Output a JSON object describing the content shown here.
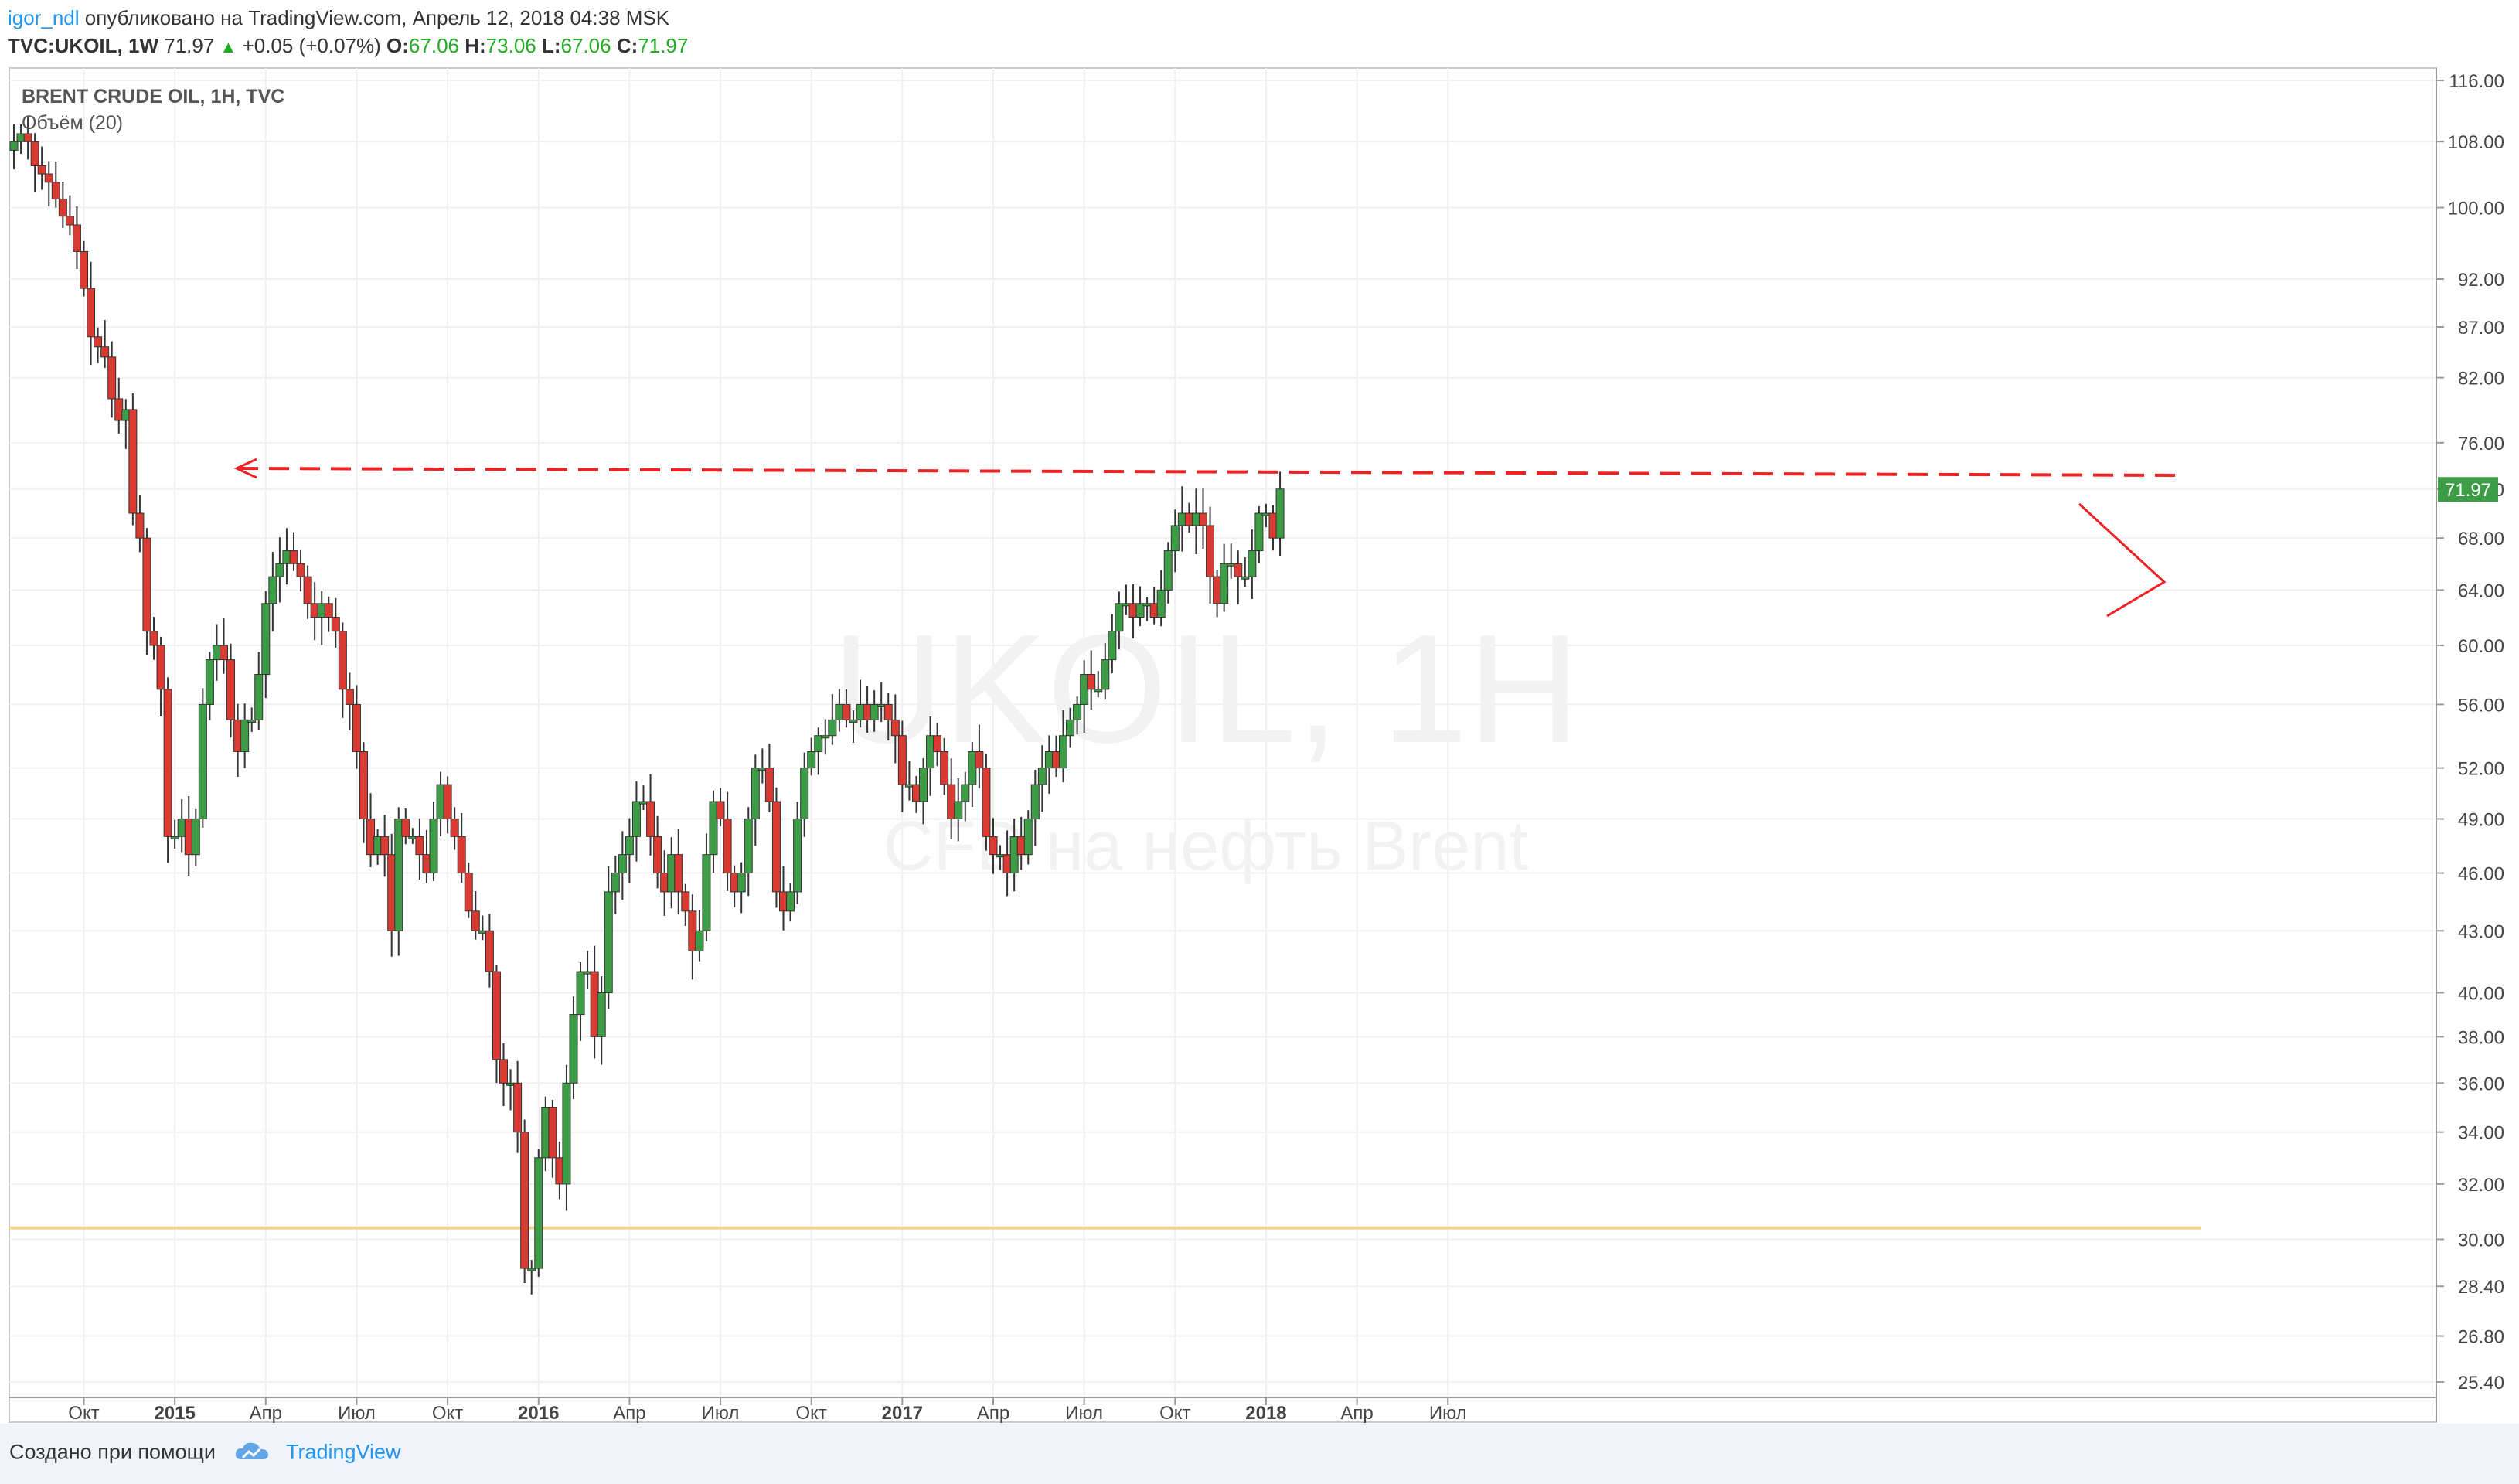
{
  "header": {
    "author": "igor_ndl",
    "published": "опубликовано на TradingView.com, Апрель 12, 2018 04:38 MSK",
    "symbol": "TVC:UKOIL, 1W",
    "last": "71.97",
    "change": "+0.05 (+0.07%)",
    "o_label": "O:",
    "o": "67.06",
    "h_label": "H:",
    "h": "73.06",
    "l_label": "L:",
    "l": "67.06",
    "c_label": "C:",
    "c": "71.97"
  },
  "legend": {
    "title": "BRENT CRUDE OIL, 1H, TVC",
    "volume": "Объём (20)"
  },
  "watermark": {
    "line1": "UKOIL, 1H",
    "line2": "CFD на нефть Brent"
  },
  "footer": {
    "created": "Создано при помощи",
    "brand": "TradingView"
  },
  "colors": {
    "up": "#3d9d46",
    "down": "#d93a31",
    "level": "#ee2222",
    "support": "#f5d48a",
    "price_tag": "#3d9d46",
    "author": "#2196f3"
  },
  "chart_data": {
    "type": "candlestick",
    "title": "BRENT CRUDE OIL, 1H, TVC",
    "scale": "log",
    "ylim": [
      25.4,
      116.0
    ],
    "y_ticks": [
      "116.00",
      "108.00",
      "100.00",
      "92.00",
      "87.00",
      "82.00",
      "76.00",
      "72.00",
      "68.00",
      "64.00",
      "60.00",
      "56.00",
      "52.00",
      "49.00",
      "46.00",
      "43.00",
      "40.00",
      "38.00",
      "36.00",
      "34.00",
      "32.00",
      "30.00",
      "28.40",
      "26.80",
      "25.40"
    ],
    "x_ticks": [
      {
        "label": "Окт",
        "week": 10,
        "bold": false
      },
      {
        "label": "2015",
        "week": 23,
        "bold": true
      },
      {
        "label": "Апр",
        "week": 36,
        "bold": false
      },
      {
        "label": "Июл",
        "week": 49,
        "bold": false
      },
      {
        "label": "Окт",
        "week": 62,
        "bold": false
      },
      {
        "label": "2016",
        "week": 75,
        "bold": true
      },
      {
        "label": "Апр",
        "week": 88,
        "bold": false
      },
      {
        "label": "Июл",
        "week": 101,
        "bold": false
      },
      {
        "label": "Окт",
        "week": 114,
        "bold": false
      },
      {
        "label": "2017",
        "week": 127,
        "bold": true
      },
      {
        "label": "Апр",
        "week": 140,
        "bold": false
      },
      {
        "label": "Июл",
        "week": 153,
        "bold": false
      },
      {
        "label": "Окт",
        "week": 166,
        "bold": false
      },
      {
        "label": "2018",
        "week": 179,
        "bold": true
      },
      {
        "label": "Апр",
        "week": 192,
        "bold": false
      },
      {
        "label": "Июл",
        "week": 205,
        "bold": false
      }
    ],
    "closes": [
      108,
      109,
      108,
      105,
      104,
      103,
      101,
      99,
      98,
      95,
      91,
      86,
      85,
      84,
      80,
      78,
      79,
      70,
      68,
      61,
      60,
      57,
      48,
      48,
      49,
      47,
      49,
      56,
      59,
      60,
      59,
      55,
      53,
      55,
      55,
      58,
      63,
      65,
      66,
      67,
      66,
      65,
      63,
      62,
      63,
      62,
      61,
      57,
      56,
      53,
      49,
      47,
      48,
      47,
      43,
      49,
      48,
      48,
      47,
      46,
      49,
      51,
      49,
      48,
      46,
      44,
      43,
      43,
      41,
      37,
      36,
      36,
      34,
      29,
      29,
      33,
      35,
      33,
      32,
      36,
      39,
      41,
      41,
      38,
      40,
      45,
      46,
      47,
      48,
      50,
      50,
      48,
      46,
      45,
      47,
      45,
      44,
      42,
      43,
      47,
      50,
      49,
      46,
      45,
      46,
      49,
      52,
      52,
      50,
      45,
      44,
      45,
      49,
      52,
      53,
      54,
      54,
      55,
      56,
      55,
      55,
      56,
      55,
      56,
      56,
      55,
      54,
      51,
      51,
      50,
      52,
      54,
      53,
      51,
      49,
      50,
      51,
      53,
      52,
      48,
      47,
      47,
      46,
      48,
      47,
      49,
      51,
      52,
      53,
      52,
      54,
      55,
      56,
      58,
      57,
      57,
      59,
      61,
      63,
      63,
      62,
      63,
      63,
      62,
      64,
      67,
      69,
      70,
      69,
      70,
      69,
      65,
      63,
      66,
      66,
      65,
      65,
      67,
      70,
      70,
      68,
      72
    ]
  }
}
